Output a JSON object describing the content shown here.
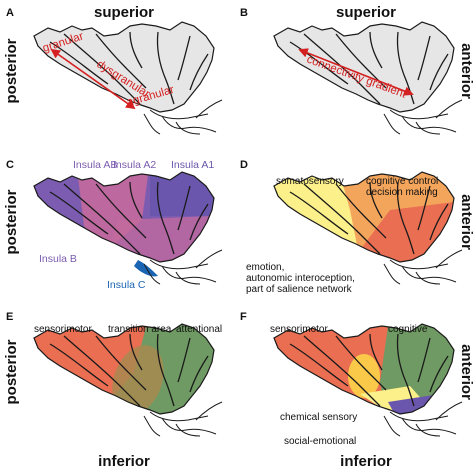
{
  "panels": {
    "a": {
      "letter": "A",
      "top": "superior",
      "left": "posterior",
      "granular": "granular",
      "dysgranular": "dysgranular",
      "agranular": "agranular"
    },
    "b": {
      "letter": "B",
      "top": "superior",
      "right": "anterior",
      "gradient": "connectivity gradient"
    },
    "c": {
      "letter": "C",
      "left": "posterior",
      "ab": "Insula AB",
      "a2": "Insula A2",
      "a1": "Insula A1",
      "b": "Insula B",
      "c": "Insula C"
    },
    "d": {
      "letter": "D",
      "right": "anterior",
      "soma": "somatosensory",
      "cog1": "cognitive control",
      "cog2": "decision making",
      "emo1": "emotion,",
      "emo2": "autonomic interoception,",
      "emo3": "part of salience network"
    },
    "e": {
      "letter": "E",
      "left": "posterior",
      "bottom": "inferior",
      "sm": "sensorimotor",
      "trans": "transition area",
      "att": "attentional"
    },
    "f": {
      "letter": "F",
      "right": "anterior",
      "bottom": "inferior",
      "sm": "sensorimotor",
      "cog": "cognitive",
      "chem": "chemical sensory",
      "soc": "social-emotional"
    }
  },
  "colors": {
    "outline_fill": "#e6e6e6",
    "red": "#d42020",
    "purple": "#7b5cb0",
    "magenta": "#c46a9e",
    "blue": "#1a64b4",
    "yellow": "#fbf08a",
    "orange": "#f4a55c",
    "coral": "#ea6e52",
    "green": "#6f9a63",
    "darkpurple": "#6a57ad",
    "text": "#111111"
  }
}
